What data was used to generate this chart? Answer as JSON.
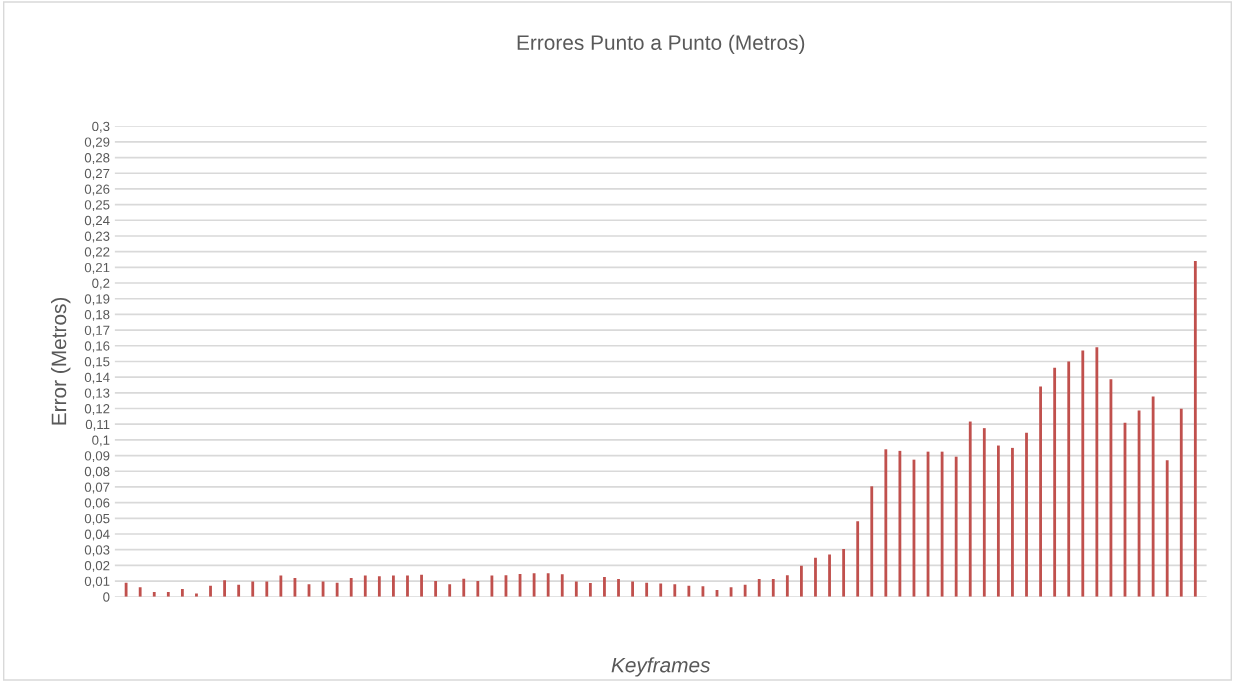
{
  "chart_data": {
    "type": "bar",
    "title": "Errores Punto a Punto (Metros)",
    "xlabel": "Keyframes",
    "ylabel": "Error (Metros)",
    "categories": [
      null,
      null,
      null,
      null,
      null,
      null,
      null,
      null,
      null,
      null,
      null,
      null,
      null,
      null,
      null,
      null,
      null,
      null,
      null,
      null,
      null,
      null,
      null,
      null,
      null,
      null,
      null,
      null,
      null,
      null,
      null,
      null,
      null,
      null,
      null,
      null,
      null,
      null,
      null,
      null,
      null,
      null,
      null,
      null,
      null,
      null,
      null,
      null,
      null,
      null,
      null,
      null,
      null,
      null,
      null,
      null,
      null,
      null,
      null,
      null,
      null,
      null,
      null,
      null,
      null,
      null,
      null,
      null,
      null,
      null,
      null,
      null,
      null,
      null,
      null,
      null,
      null
    ],
    "series": [
      {
        "color": "#c0504d",
        "values": [
          0.009,
          0.006,
          0.003,
          0.003,
          0.005,
          0.002,
          0.007,
          0.0105,
          0.0076,
          0.0098,
          0.0098,
          0.0135,
          0.012,
          0.008,
          0.0098,
          0.009,
          0.012,
          0.0135,
          0.013,
          0.0135,
          0.0135,
          0.014,
          0.01,
          0.008,
          0.0115,
          0.01,
          0.0135,
          0.0137,
          0.0145,
          0.015,
          0.015,
          0.0143,
          0.0098,
          0.0087,
          0.0126,
          0.0113,
          0.0098,
          0.009,
          0.0085,
          0.008,
          0.007,
          0.0067,
          0.0043,
          0.006,
          0.0076,
          0.0113,
          0.0113,
          0.0137,
          0.0198,
          0.0248,
          0.027,
          0.0305,
          0.0482,
          0.0704,
          0.094,
          0.093,
          0.0874,
          0.0925,
          0.0925,
          0.0893,
          0.1117,
          0.1075,
          0.0964,
          0.0949,
          0.1045,
          0.1341,
          0.146,
          0.15,
          0.157,
          0.159,
          0.1386,
          0.111,
          0.1188,
          0.1277,
          0.087,
          0.1198,
          0.214
        ]
      }
    ],
    "ylim": [
      0,
      0.3
    ],
    "yticks": [
      0,
      {
        "value": 0.01,
        "label": "0,01"
      },
      {
        "value": 0.02,
        "label": "0,02"
      },
      {
        "value": 0.03,
        "label": "0,03"
      },
      {
        "value": 0.04,
        "label": "0,04"
      },
      {
        "value": 0.05,
        "label": "0,05"
      },
      {
        "value": 0.06,
        "label": "0,06"
      },
      {
        "value": 0.07,
        "label": "0,07"
      },
      {
        "value": 0.08,
        "label": "0,08"
      },
      {
        "value": 0.09,
        "label": "0,09"
      },
      {
        "value": 0.1,
        "label": "0,1"
      },
      {
        "value": 0.11,
        "label": "0,11"
      },
      {
        "value": 0.12,
        "label": "0,12"
      },
      {
        "value": 0.13,
        "label": "0,13"
      },
      {
        "value": 0.14,
        "label": "0,14"
      },
      {
        "value": 0.15,
        "label": "0,15"
      },
      {
        "value": 0.16,
        "label": "0,16"
      },
      {
        "value": 0.17,
        "label": "0,17"
      },
      {
        "value": 0.18,
        "label": "0,18"
      },
      {
        "value": 0.19,
        "label": "0,19"
      },
      {
        "value": 0.2,
        "label": "0,2"
      },
      {
        "value": 0.21,
        "label": "0,21"
      },
      {
        "value": 0.22,
        "label": "0,22"
      },
      {
        "value": 0.23,
        "label": "0,23"
      },
      {
        "value": 0.24,
        "label": "0,24"
      },
      {
        "value": 0.25,
        "label": "0,25"
      },
      {
        "value": 0.26,
        "label": "0,26"
      },
      {
        "value": 0.27,
        "label": "0,27"
      },
      {
        "value": 0.28,
        "label": "0,28"
      },
      {
        "value": 0.29,
        "label": "0,29"
      },
      {
        "value": 0.3,
        "label": "0,3"
      }
    ],
    "grid": "y"
  }
}
